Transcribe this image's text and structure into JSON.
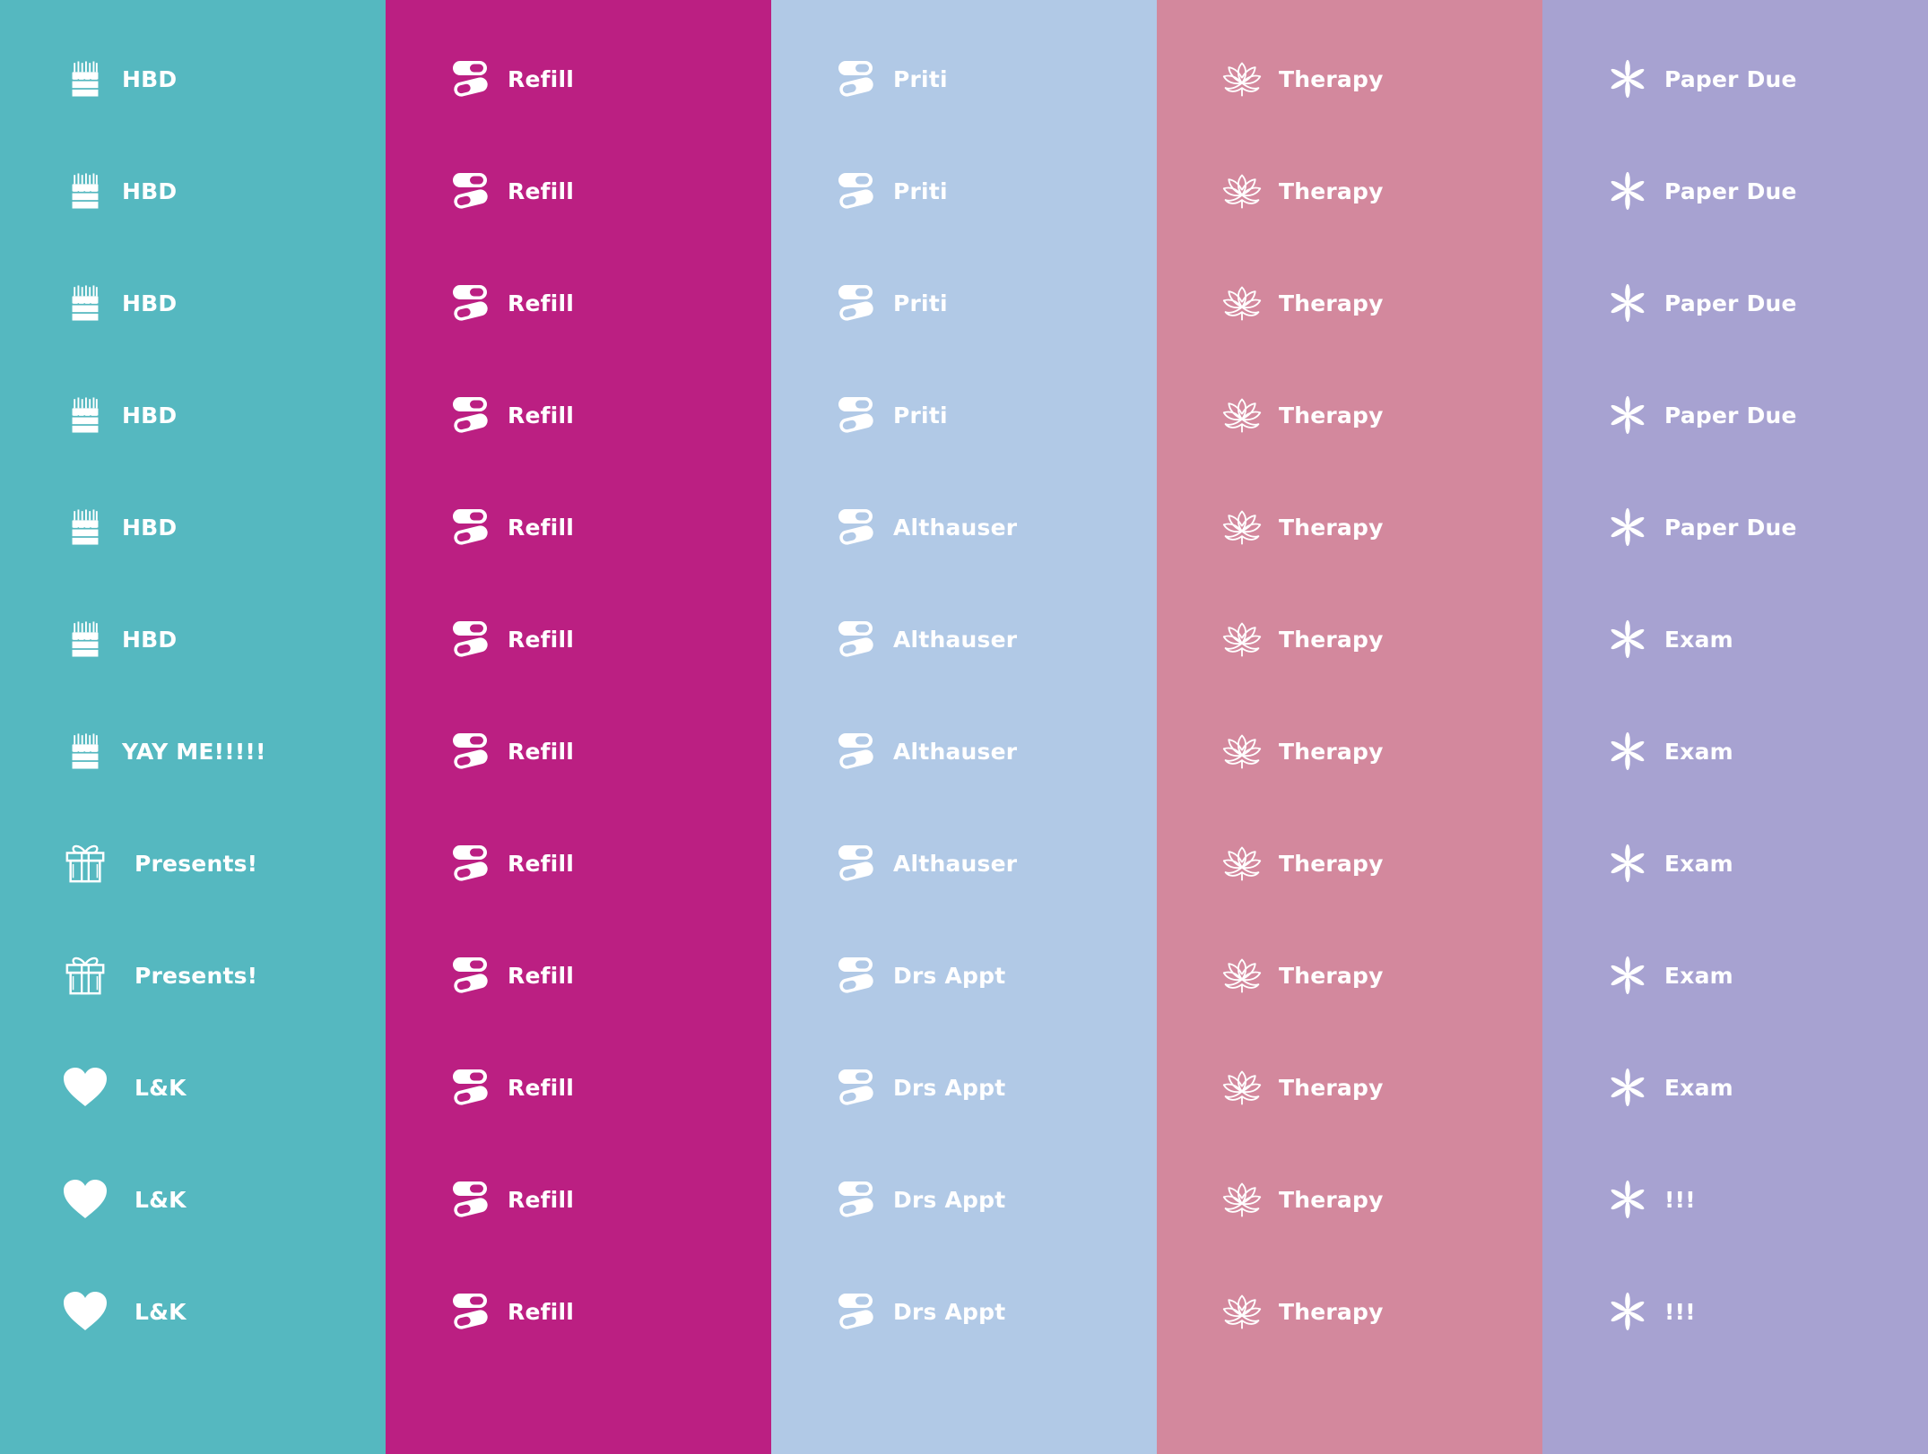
{
  "columns": [
    {
      "color": "#55b8c0",
      "stickers": [
        {
          "icon": "birthday-cake-icon",
          "label": "HBD"
        },
        {
          "icon": "birthday-cake-icon",
          "label": "HBD"
        },
        {
          "icon": "birthday-cake-icon",
          "label": "HBD"
        },
        {
          "icon": "birthday-cake-icon",
          "label": "HBD"
        },
        {
          "icon": "birthday-cake-icon",
          "label": "HBD"
        },
        {
          "icon": "birthday-cake-icon",
          "label": "HBD"
        },
        {
          "icon": "birthday-cake-icon",
          "label": "YAY ME!!!!!"
        },
        {
          "icon": "gift-icon",
          "label": "Presents!"
        },
        {
          "icon": "gift-icon",
          "label": "Presents!"
        },
        {
          "icon": "heart-icon",
          "label": "L&K"
        },
        {
          "icon": "heart-icon",
          "label": "L&K"
        },
        {
          "icon": "heart-icon",
          "label": "L&K"
        }
      ]
    },
    {
      "color": "#bb1f82",
      "stickers": [
        {
          "icon": "pills-icon",
          "label": "Refill"
        },
        {
          "icon": "pills-icon",
          "label": "Refill"
        },
        {
          "icon": "pills-icon",
          "label": "Refill"
        },
        {
          "icon": "pills-icon",
          "label": "Refill"
        },
        {
          "icon": "pills-icon",
          "label": "Refill"
        },
        {
          "icon": "pills-icon",
          "label": "Refill"
        },
        {
          "icon": "pills-icon",
          "label": "Refill"
        },
        {
          "icon": "pills-icon",
          "label": "Refill"
        },
        {
          "icon": "pills-icon",
          "label": "Refill"
        },
        {
          "icon": "pills-icon",
          "label": "Refill"
        },
        {
          "icon": "pills-icon",
          "label": "Refill"
        },
        {
          "icon": "pills-icon",
          "label": "Refill"
        }
      ]
    },
    {
      "color": "#b1c9e6",
      "stickers": [
        {
          "icon": "pills-icon",
          "label": "Priti"
        },
        {
          "icon": "pills-icon",
          "label": "Priti"
        },
        {
          "icon": "pills-icon",
          "label": "Priti"
        },
        {
          "icon": "pills-icon",
          "label": "Priti"
        },
        {
          "icon": "pills-icon",
          "label": "Althauser"
        },
        {
          "icon": "pills-icon",
          "label": "Althauser"
        },
        {
          "icon": "pills-icon",
          "label": "Althauser"
        },
        {
          "icon": "pills-icon",
          "label": "Althauser"
        },
        {
          "icon": "pills-icon",
          "label": "Drs Appt"
        },
        {
          "icon": "pills-icon",
          "label": "Drs Appt"
        },
        {
          "icon": "pills-icon",
          "label": "Drs Appt"
        },
        {
          "icon": "pills-icon",
          "label": "Drs Appt"
        }
      ]
    },
    {
      "color": "#d3889d",
      "stickers": [
        {
          "icon": "lotus-flower-icon",
          "label": "Therapy"
        },
        {
          "icon": "lotus-flower-icon",
          "label": "Therapy"
        },
        {
          "icon": "lotus-flower-icon",
          "label": "Therapy"
        },
        {
          "icon": "lotus-flower-icon",
          "label": "Therapy"
        },
        {
          "icon": "lotus-flower-icon",
          "label": "Therapy"
        },
        {
          "icon": "lotus-flower-icon",
          "label": "Therapy"
        },
        {
          "icon": "lotus-flower-icon",
          "label": "Therapy"
        },
        {
          "icon": "lotus-flower-icon",
          "label": "Therapy"
        },
        {
          "icon": "lotus-flower-icon",
          "label": "Therapy"
        },
        {
          "icon": "lotus-flower-icon",
          "label": "Therapy"
        },
        {
          "icon": "lotus-flower-icon",
          "label": "Therapy"
        },
        {
          "icon": "lotus-flower-icon",
          "label": "Therapy"
        }
      ]
    },
    {
      "color": "#a7a2d1",
      "stickers": [
        {
          "icon": "asterisk-icon",
          "label": "Paper Due"
        },
        {
          "icon": "asterisk-icon",
          "label": "Paper Due"
        },
        {
          "icon": "asterisk-icon",
          "label": "Paper Due"
        },
        {
          "icon": "asterisk-icon",
          "label": "Paper Due"
        },
        {
          "icon": "asterisk-icon",
          "label": "Paper Due"
        },
        {
          "icon": "asterisk-icon",
          "label": "Exam"
        },
        {
          "icon": "asterisk-icon",
          "label": "Exam"
        },
        {
          "icon": "asterisk-icon",
          "label": "Exam"
        },
        {
          "icon": "asterisk-icon",
          "label": "Exam"
        },
        {
          "icon": "asterisk-icon",
          "label": "Exam"
        },
        {
          "icon": "asterisk-icon",
          "label": "!!!"
        },
        {
          "icon": "asterisk-icon",
          "label": "!!!"
        }
      ]
    }
  ]
}
